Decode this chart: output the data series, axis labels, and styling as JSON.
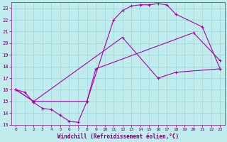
{
  "xlabel": "Windchill (Refroidissement éolien,°C)",
  "xlim": [
    -0.5,
    23.5
  ],
  "ylim": [
    13,
    23.5
  ],
  "xticks": [
    0,
    1,
    2,
    3,
    4,
    5,
    6,
    7,
    8,
    9,
    10,
    11,
    12,
    13,
    14,
    15,
    16,
    17,
    18,
    19,
    20,
    21,
    22,
    23
  ],
  "yticks": [
    13,
    14,
    15,
    16,
    17,
    18,
    19,
    20,
    21,
    22,
    23
  ],
  "bg_color": "#c0ecee",
  "grid_color": "#9ed4d8",
  "line_color": "#aa00aa",
  "line1_x": [
    0,
    1,
    2,
    3,
    4,
    5,
    6,
    7,
    8,
    9,
    20,
    23
  ],
  "line1_y": [
    16.0,
    15.8,
    14.9,
    14.4,
    14.3,
    13.8,
    13.3,
    13.2,
    15.0,
    17.8,
    20.9,
    18.5
  ],
  "line2_x": [
    0,
    2,
    8,
    11,
    12,
    13,
    14,
    15,
    16,
    17,
    18,
    21,
    23
  ],
  "line2_y": [
    16.0,
    15.0,
    15.0,
    22.0,
    22.8,
    23.2,
    23.3,
    23.3,
    23.4,
    23.3,
    22.5,
    21.4,
    17.8
  ],
  "line3_x": [
    0,
    2,
    12,
    16,
    18,
    23
  ],
  "line3_y": [
    16.0,
    15.0,
    20.5,
    17.0,
    17.5,
    17.8
  ]
}
